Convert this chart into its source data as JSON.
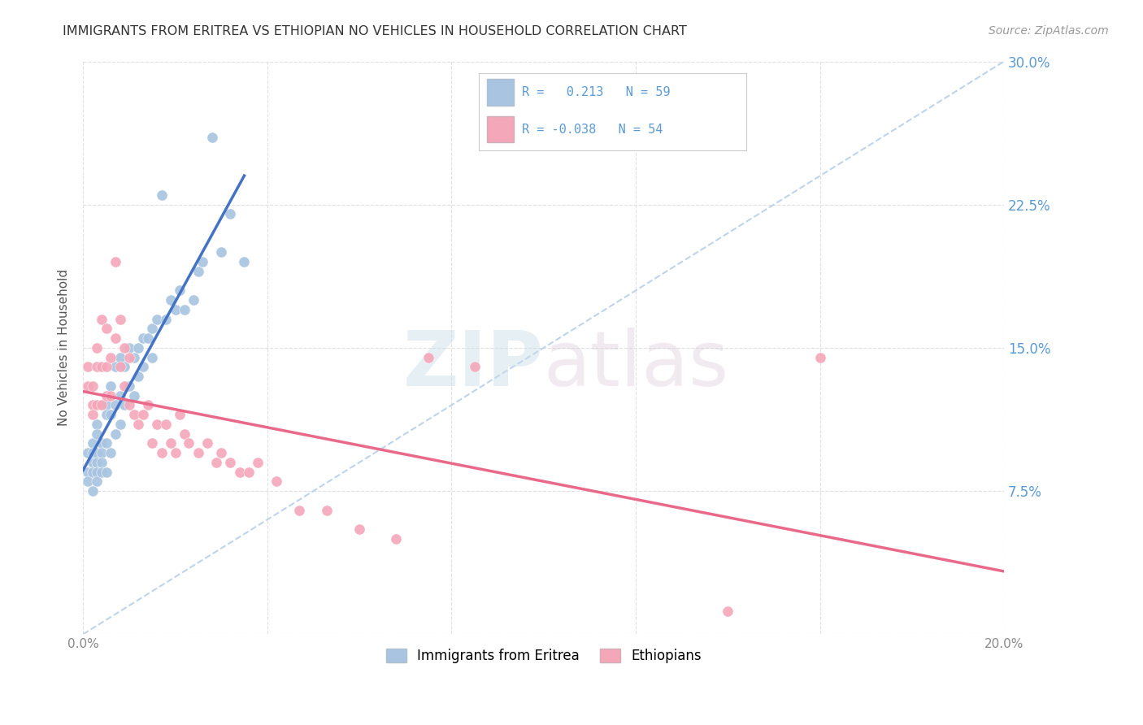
{
  "title": "IMMIGRANTS FROM ERITREA VS ETHIOPIAN NO VEHICLES IN HOUSEHOLD CORRELATION CHART",
  "source": "Source: ZipAtlas.com",
  "ylabel": "No Vehicles in Household",
  "xlim": [
    0.0,
    0.2
  ],
  "ylim": [
    0.0,
    0.3
  ],
  "xticks": [
    0.0,
    0.04,
    0.08,
    0.12,
    0.16,
    0.2
  ],
  "yticks": [
    0.0,
    0.075,
    0.15,
    0.225,
    0.3
  ],
  "color_eritrea": "#a8c4e0",
  "color_ethiopia": "#f4a7b9",
  "line_eritrea": "#4472c4",
  "line_ethiopia": "#e8698a",
  "line_diagonal": "#b8d0e8",
  "background": "#ffffff",
  "grid_color": "#e0e0e0",
  "eritrea_x": [
    0.001,
    0.001,
    0.001,
    0.002,
    0.002,
    0.002,
    0.002,
    0.002,
    0.003,
    0.003,
    0.003,
    0.003,
    0.003,
    0.003,
    0.004,
    0.004,
    0.004,
    0.004,
    0.004,
    0.005,
    0.005,
    0.005,
    0.005,
    0.006,
    0.006,
    0.006,
    0.007,
    0.007,
    0.007,
    0.008,
    0.008,
    0.008,
    0.009,
    0.009,
    0.01,
    0.01,
    0.011,
    0.011,
    0.012,
    0.012,
    0.013,
    0.013,
    0.014,
    0.015,
    0.015,
    0.016,
    0.017,
    0.018,
    0.019,
    0.02,
    0.021,
    0.022,
    0.024,
    0.025,
    0.026,
    0.028,
    0.03,
    0.032,
    0.035
  ],
  "eritrea_y": [
    0.095,
    0.085,
    0.08,
    0.1,
    0.09,
    0.085,
    0.095,
    0.075,
    0.11,
    0.095,
    0.09,
    0.085,
    0.08,
    0.105,
    0.12,
    0.1,
    0.095,
    0.09,
    0.085,
    0.12,
    0.115,
    0.1,
    0.085,
    0.13,
    0.115,
    0.095,
    0.14,
    0.12,
    0.105,
    0.145,
    0.125,
    0.11,
    0.14,
    0.12,
    0.15,
    0.13,
    0.145,
    0.125,
    0.15,
    0.135,
    0.155,
    0.14,
    0.155,
    0.16,
    0.145,
    0.165,
    0.23,
    0.165,
    0.175,
    0.17,
    0.18,
    0.17,
    0.175,
    0.19,
    0.195,
    0.26,
    0.2,
    0.22,
    0.195
  ],
  "ethiopia_x": [
    0.001,
    0.001,
    0.002,
    0.002,
    0.002,
    0.003,
    0.003,
    0.003,
    0.004,
    0.004,
    0.004,
    0.005,
    0.005,
    0.005,
    0.006,
    0.006,
    0.007,
    0.007,
    0.008,
    0.008,
    0.009,
    0.009,
    0.01,
    0.01,
    0.011,
    0.012,
    0.013,
    0.014,
    0.015,
    0.016,
    0.017,
    0.018,
    0.019,
    0.02,
    0.021,
    0.022,
    0.023,
    0.025,
    0.027,
    0.029,
    0.03,
    0.032,
    0.034,
    0.036,
    0.038,
    0.042,
    0.047,
    0.053,
    0.06,
    0.068,
    0.075,
    0.085,
    0.14,
    0.16
  ],
  "ethiopia_y": [
    0.14,
    0.13,
    0.13,
    0.12,
    0.115,
    0.15,
    0.14,
    0.12,
    0.165,
    0.14,
    0.12,
    0.16,
    0.14,
    0.125,
    0.145,
    0.125,
    0.195,
    0.155,
    0.165,
    0.14,
    0.15,
    0.13,
    0.145,
    0.12,
    0.115,
    0.11,
    0.115,
    0.12,
    0.1,
    0.11,
    0.095,
    0.11,
    0.1,
    0.095,
    0.115,
    0.105,
    0.1,
    0.095,
    0.1,
    0.09,
    0.095,
    0.09,
    0.085,
    0.085,
    0.09,
    0.08,
    0.065,
    0.065,
    0.055,
    0.05,
    0.145,
    0.14,
    0.012,
    0.145
  ]
}
